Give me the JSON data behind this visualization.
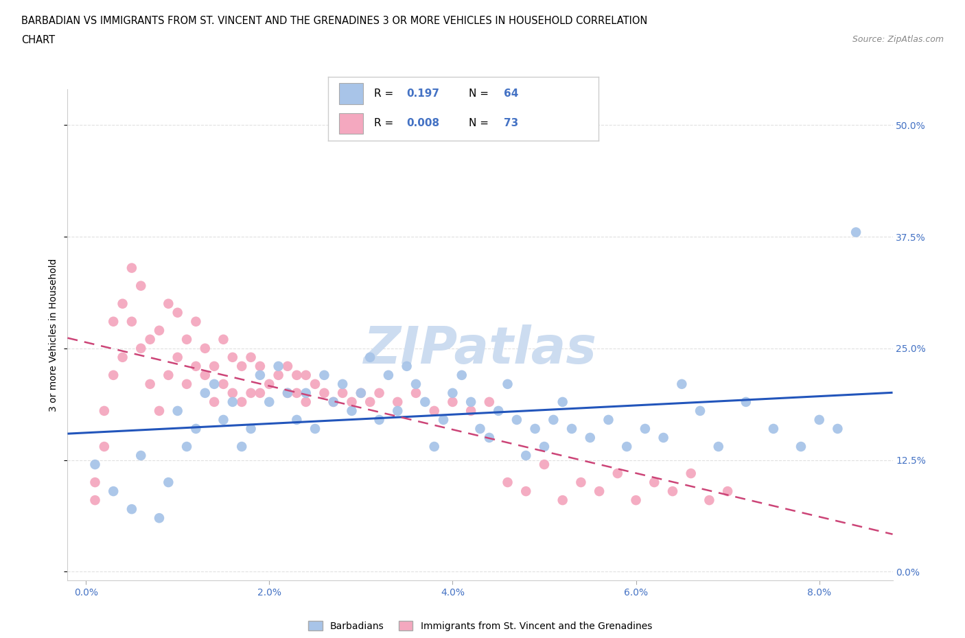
{
  "title_line1": "BARBADIAN VS IMMIGRANTS FROM ST. VINCENT AND THE GRENADINES 3 OR MORE VEHICLES IN HOUSEHOLD CORRELATION",
  "title_line2": "CHART",
  "source_text": "Source: ZipAtlas.com",
  "ylabel": "3 or more Vehicles in Household",
  "x_ticks": [
    0.0,
    0.02,
    0.04,
    0.06,
    0.08
  ],
  "x_tick_labels": [
    "0.0%",
    "2.0%",
    "4.0%",
    "6.0%",
    "8.0%"
  ],
  "y_ticks": [
    0.0,
    0.125,
    0.25,
    0.375,
    0.5
  ],
  "y_tick_labels": [
    "0.0%",
    "12.5%",
    "25.0%",
    "37.5%",
    "50.0%"
  ],
  "xlim": [
    -0.002,
    0.088
  ],
  "ylim": [
    -0.01,
    0.54
  ],
  "blue_color": "#a8c4e8",
  "pink_color": "#f4a8bf",
  "blue_line_color": "#2255bb",
  "pink_line_color": "#cc4477",
  "watermark_color": "#ccdcf0",
  "R_blue": 0.197,
  "N_blue": 64,
  "R_pink": 0.008,
  "N_pink": 73,
  "blue_scatter_x": [
    0.001,
    0.003,
    0.005,
    0.006,
    0.008,
    0.009,
    0.01,
    0.011,
    0.012,
    0.013,
    0.014,
    0.015,
    0.016,
    0.017,
    0.018,
    0.019,
    0.02,
    0.021,
    0.022,
    0.023,
    0.024,
    0.025,
    0.026,
    0.027,
    0.028,
    0.029,
    0.03,
    0.031,
    0.032,
    0.033,
    0.034,
    0.035,
    0.036,
    0.037,
    0.038,
    0.039,
    0.04,
    0.041,
    0.042,
    0.043,
    0.044,
    0.045,
    0.046,
    0.047,
    0.048,
    0.049,
    0.05,
    0.051,
    0.052,
    0.053,
    0.055,
    0.057,
    0.059,
    0.061,
    0.063,
    0.065,
    0.067,
    0.069,
    0.072,
    0.075,
    0.078,
    0.08,
    0.082,
    0.084
  ],
  "blue_scatter_y": [
    0.12,
    0.09,
    0.07,
    0.13,
    0.06,
    0.1,
    0.18,
    0.14,
    0.16,
    0.2,
    0.21,
    0.17,
    0.19,
    0.14,
    0.16,
    0.22,
    0.19,
    0.23,
    0.2,
    0.17,
    0.2,
    0.16,
    0.22,
    0.19,
    0.21,
    0.18,
    0.2,
    0.24,
    0.17,
    0.22,
    0.18,
    0.23,
    0.21,
    0.19,
    0.14,
    0.17,
    0.2,
    0.22,
    0.19,
    0.16,
    0.15,
    0.18,
    0.21,
    0.17,
    0.13,
    0.16,
    0.14,
    0.17,
    0.19,
    0.16,
    0.15,
    0.17,
    0.14,
    0.16,
    0.15,
    0.21,
    0.18,
    0.14,
    0.19,
    0.16,
    0.14,
    0.17,
    0.16,
    0.38
  ],
  "pink_scatter_x": [
    0.001,
    0.001,
    0.002,
    0.002,
    0.003,
    0.003,
    0.004,
    0.004,
    0.005,
    0.005,
    0.006,
    0.006,
    0.007,
    0.007,
    0.008,
    0.008,
    0.009,
    0.009,
    0.01,
    0.01,
    0.011,
    0.011,
    0.012,
    0.012,
    0.013,
    0.013,
    0.014,
    0.014,
    0.015,
    0.015,
    0.016,
    0.016,
    0.017,
    0.017,
    0.018,
    0.018,
    0.019,
    0.019,
    0.02,
    0.021,
    0.022,
    0.022,
    0.023,
    0.023,
    0.024,
    0.024,
    0.025,
    0.026,
    0.027,
    0.028,
    0.029,
    0.03,
    0.031,
    0.032,
    0.034,
    0.036,
    0.038,
    0.04,
    0.042,
    0.044,
    0.046,
    0.048,
    0.05,
    0.052,
    0.054,
    0.056,
    0.058,
    0.06,
    0.062,
    0.064,
    0.066,
    0.068,
    0.07
  ],
  "pink_scatter_y": [
    0.1,
    0.08,
    0.14,
    0.18,
    0.22,
    0.28,
    0.24,
    0.3,
    0.28,
    0.34,
    0.25,
    0.32,
    0.21,
    0.26,
    0.18,
    0.27,
    0.22,
    0.3,
    0.24,
    0.29,
    0.21,
    0.26,
    0.23,
    0.28,
    0.22,
    0.25,
    0.19,
    0.23,
    0.21,
    0.26,
    0.2,
    0.24,
    0.19,
    0.23,
    0.2,
    0.24,
    0.2,
    0.23,
    0.21,
    0.22,
    0.2,
    0.23,
    0.2,
    0.22,
    0.19,
    0.22,
    0.21,
    0.2,
    0.19,
    0.2,
    0.19,
    0.2,
    0.19,
    0.2,
    0.19,
    0.2,
    0.18,
    0.19,
    0.18,
    0.19,
    0.1,
    0.09,
    0.12,
    0.08,
    0.1,
    0.09,
    0.11,
    0.08,
    0.1,
    0.09,
    0.11,
    0.08,
    0.09
  ],
  "legend_label_blue": "Barbadians",
  "legend_label_pink": "Immigrants from St. Vincent and the Grenadines",
  "grid_color": "#e0e0e0",
  "background_color": "#ffffff"
}
